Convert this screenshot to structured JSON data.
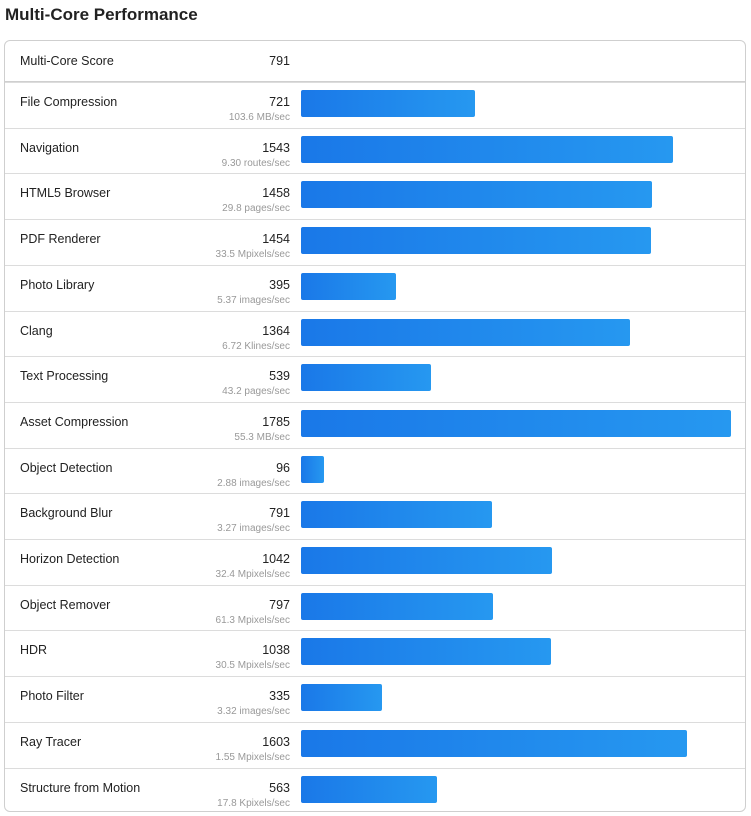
{
  "page": {
    "title": "Multi-Core Performance"
  },
  "summary": {
    "label": "Multi-Core Score",
    "score": "791"
  },
  "chart_data": {
    "type": "bar",
    "orientation": "horizontal",
    "title": "Multi-Core Performance",
    "xlim": [
      0,
      1785
    ],
    "bar_color": "#1f86ec",
    "categories": [
      "File Compression",
      "Navigation",
      "HTML5 Browser",
      "PDF Renderer",
      "Photo Library",
      "Clang",
      "Text Processing",
      "Asset Compression",
      "Object Detection",
      "Background Blur",
      "Horizon Detection",
      "Object Remover",
      "HDR",
      "Photo Filter",
      "Ray Tracer",
      "Structure from Motion"
    ],
    "values": [
      721,
      1543,
      1458,
      1454,
      395,
      1364,
      539,
      1785,
      96,
      791,
      1042,
      797,
      1038,
      335,
      1603,
      563
    ],
    "units": [
      "103.6 MB/sec",
      "9.30 routes/sec",
      "29.8 pages/sec",
      "33.5 Mpixels/sec",
      "5.37 images/sec",
      "6.72 Klines/sec",
      "43.2 pages/sec",
      "55.3 MB/sec",
      "2.88 images/sec",
      "3.27 images/sec",
      "32.4 Mpixels/sec",
      "61.3 Mpixels/sec",
      "30.5 Mpixels/sec",
      "3.32 images/sec",
      "1.55 Mpixels/sec",
      "17.8 Kpixels/sec"
    ]
  }
}
